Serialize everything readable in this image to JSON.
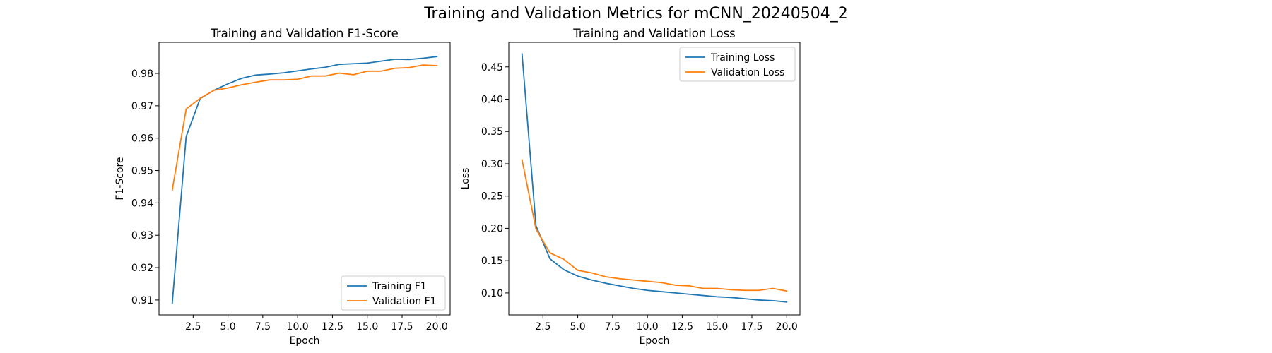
{
  "figure": {
    "suptitle": "Training and Validation Metrics for mCNN_20240504_2"
  },
  "chart_data": [
    {
      "type": "line",
      "title": "Training and Validation F1-Score",
      "xlabel": "Epoch",
      "ylabel": "F1-Score",
      "xlim": [
        0.05,
        20.95
      ],
      "ylim": [
        0.9054,
        0.9896
      ],
      "xticks": [
        2.5,
        5.0,
        7.5,
        10.0,
        12.5,
        15.0,
        17.5,
        20.0
      ],
      "xtick_labels": [
        "2.5",
        "5.0",
        "7.5",
        "10.0",
        "12.5",
        "15.0",
        "17.5",
        "20.0"
      ],
      "yticks": [
        0.91,
        0.92,
        0.93,
        0.94,
        0.95,
        0.96,
        0.97,
        0.98
      ],
      "ytick_labels": [
        "0.91",
        "0.92",
        "0.93",
        "0.94",
        "0.95",
        "0.96",
        "0.97",
        "0.98"
      ],
      "grid": false,
      "legend": "lower right",
      "x": [
        1,
        2,
        3,
        4,
        5,
        6,
        7,
        8,
        9,
        10,
        11,
        12,
        13,
        14,
        15,
        16,
        17,
        18,
        19,
        20
      ],
      "series": [
        {
          "name": "Training F1",
          "color": "#1f77b4",
          "values": [
            0.909,
            0.9605,
            0.9722,
            0.9748,
            0.9768,
            0.9785,
            0.9795,
            0.9798,
            0.9802,
            0.9808,
            0.9814,
            0.9819,
            0.9828,
            0.983,
            0.9832,
            0.9838,
            0.9844,
            0.9843,
            0.9847,
            0.9852
          ]
        },
        {
          "name": "Validation F1",
          "color": "#ff7f0e",
          "values": [
            0.944,
            0.969,
            0.9723,
            0.9748,
            0.9755,
            0.9765,
            0.9773,
            0.978,
            0.978,
            0.9782,
            0.9792,
            0.9792,
            0.9801,
            0.9796,
            0.9807,
            0.9807,
            0.9816,
            0.9818,
            0.9826,
            0.9824
          ]
        }
      ]
    },
    {
      "type": "line",
      "title": "Training and Validation Loss",
      "xlabel": "Epoch",
      "ylabel": "Loss",
      "xlim": [
        0.05,
        20.95
      ],
      "ylim": [
        0.066,
        0.488
      ],
      "xticks": [
        2.5,
        5.0,
        7.5,
        10.0,
        12.5,
        15.0,
        17.5,
        20.0
      ],
      "xtick_labels": [
        "2.5",
        "5.0",
        "7.5",
        "10.0",
        "12.5",
        "15.0",
        "17.5",
        "20.0"
      ],
      "yticks": [
        0.1,
        0.15,
        0.2,
        0.25,
        0.3,
        0.35,
        0.4,
        0.45
      ],
      "ytick_labels": [
        "0.10",
        "0.15",
        "0.20",
        "0.25",
        "0.30",
        "0.35",
        "0.40",
        "0.45"
      ],
      "grid": false,
      "legend": "upper right",
      "x": [
        1,
        2,
        3,
        4,
        5,
        6,
        7,
        8,
        9,
        10,
        11,
        12,
        13,
        14,
        15,
        16,
        17,
        18,
        19,
        20
      ],
      "series": [
        {
          "name": "Training Loss",
          "color": "#1f77b4",
          "values": [
            0.47,
            0.204,
            0.153,
            0.136,
            0.126,
            0.12,
            0.115,
            0.111,
            0.107,
            0.104,
            0.102,
            0.1,
            0.098,
            0.096,
            0.094,
            0.093,
            0.091,
            0.089,
            0.088,
            0.086
          ]
        },
        {
          "name": "Validation Loss",
          "color": "#ff7f0e",
          "values": [
            0.306,
            0.199,
            0.162,
            0.152,
            0.135,
            0.131,
            0.125,
            0.122,
            0.12,
            0.118,
            0.116,
            0.112,
            0.111,
            0.107,
            0.107,
            0.105,
            0.104,
            0.104,
            0.107,
            0.103
          ]
        }
      ]
    }
  ]
}
